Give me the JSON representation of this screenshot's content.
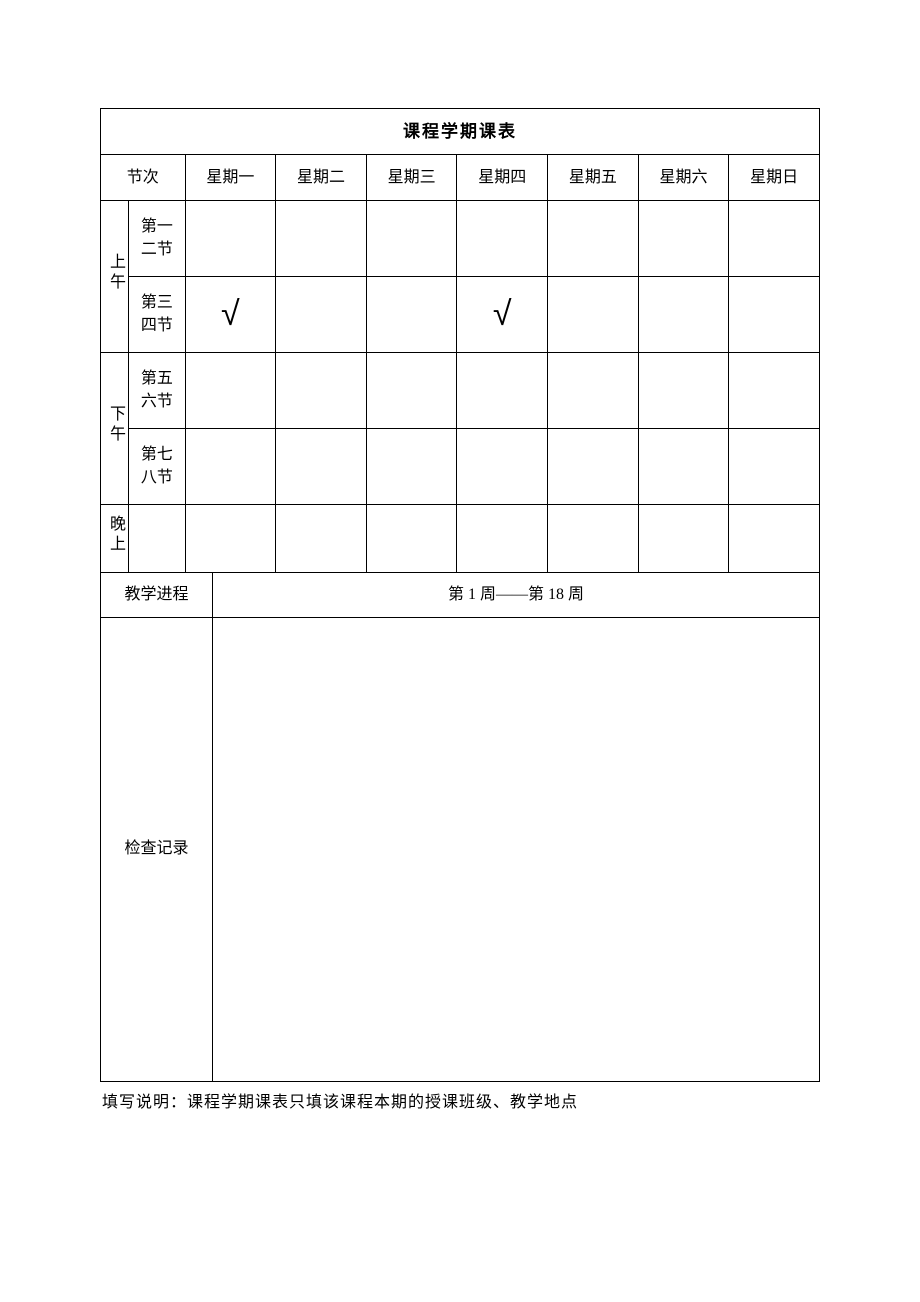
{
  "title": "课程学期课表",
  "headers": {
    "period": "节次",
    "days": [
      "星期一",
      "星期二",
      "星期三",
      "星期四",
      "星期五",
      "星期六",
      "星期日"
    ]
  },
  "sessions": {
    "morning": {
      "label": "上午",
      "periods": [
        "第一二节",
        "第三四节"
      ]
    },
    "afternoon": {
      "label": "下午",
      "periods": [
        "第五六节",
        "第七八节"
      ]
    },
    "evening": {
      "label": "晚上"
    }
  },
  "marks": {
    "check_symbol": "√",
    "r2d1": "√",
    "r2d4": "√"
  },
  "progress": {
    "label": "教学进程",
    "value": "第 1 周——第 18 周"
  },
  "inspection": {
    "label": "检查记录",
    "value": ""
  },
  "note": "填写说明：课程学期课表只填该课程本期的授课班级、教学地点",
  "style": {
    "border_color": "#000000",
    "background": "#ffffff",
    "text_color": "#000000",
    "title_fontsize": 17,
    "body_fontsize": 16,
    "check_fontsize": 34
  }
}
